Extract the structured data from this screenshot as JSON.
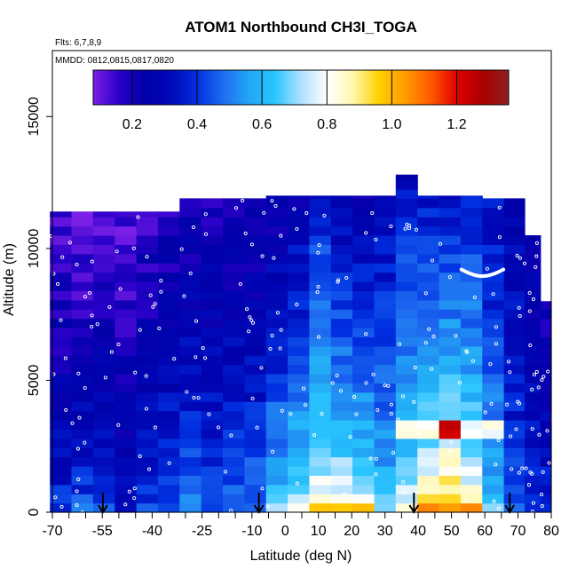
{
  "chart_data": {
    "type": "heatmap",
    "title": "ATOM1 Northbound CH3I_TOGA",
    "flights_label": "Flts: 6,7,8,9",
    "dates_label": "MMDD: 0812,0815,0817,0820",
    "xlabel": "Latitude (deg N)",
    "ylabel": "Altitude (m)",
    "xlim": [
      -70,
      80
    ],
    "ylim": [
      0,
      17500
    ],
    "xticks": [
      -70,
      -55,
      -40,
      -25,
      -10,
      0,
      10,
      20,
      30,
      40,
      50,
      60,
      70,
      80
    ],
    "xtick_labels": [
      "-70",
      "-55",
      "-40",
      "-25",
      "-10",
      "0",
      "10",
      "20",
      "30",
      "40",
      "50",
      "60",
      "70",
      "80"
    ],
    "yticks": [
      0,
      5000,
      10000,
      15000
    ],
    "ytick_labels": [
      "0",
      "5000",
      "10000",
      "15000"
    ],
    "colorbar": {
      "min": 0.08,
      "max": 1.36,
      "ticks": [
        0.2,
        0.4,
        0.6,
        0.8,
        1.0,
        1.2
      ],
      "tick_labels": [
        "0.2",
        "0.4",
        "0.6",
        "0.8",
        "1.0",
        "1.2"
      ],
      "colors": [
        "#7a1fe6",
        "#2a00c8",
        "#0000a8",
        "#0008b8",
        "#0030e0",
        "#1f6cf0",
        "#22a6f4",
        "#2ac6ff",
        "#aee0ff",
        "#ffffff",
        "#fff8b0",
        "#ffd000",
        "#ff9c00",
        "#ff5a00",
        "#e00000",
        "#aa0000",
        "#902020"
      ]
    },
    "airport_markers_latitude": [
      -54.8,
      -7.9,
      38.7,
      67.5
    ],
    "grid": false,
    "legend": "colorbar top",
    "profiles": [
      {
        "lat": -67.5,
        "top": 11400,
        "bottom_value": 0.45,
        "top_value": 0.12
      },
      {
        "lat": -61,
        "top": 11400,
        "bottom_value": 0.5,
        "top_value": 0.1
      },
      {
        "lat": -54.5,
        "top": 11400,
        "bottom_value": 0.5,
        "top_value": 0.12
      },
      {
        "lat": -48,
        "top": 11400,
        "bottom_value": 0.4,
        "top_value": 0.12
      },
      {
        "lat": -41.5,
        "top": 11400,
        "bottom_value": 0.45,
        "top_value": 0.16
      },
      {
        "lat": -35,
        "top": 11400,
        "bottom_value": 0.5,
        "top_value": 0.18
      },
      {
        "lat": -28.5,
        "top": 11900,
        "bottom_value": 0.55,
        "top_value": 0.2
      },
      {
        "lat": -22,
        "top": 11900,
        "bottom_value": 0.5,
        "top_value": 0.2
      },
      {
        "lat": -15.5,
        "top": 11900,
        "bottom_value": 0.55,
        "top_value": 0.2
      },
      {
        "lat": -9,
        "top": 11900,
        "bottom_value": 0.55,
        "top_value": 0.2
      },
      {
        "lat": -2.5,
        "top": 12000,
        "bottom_value": 0.72,
        "top_value": 0.22
      },
      {
        "lat": 4,
        "top": 12000,
        "bottom_value": 0.82,
        "top_value": 0.26
      },
      {
        "lat": 10.5,
        "top": 12000,
        "bottom_value": 0.92,
        "top_value": 0.36
      },
      {
        "lat": 17,
        "top": 12000,
        "bottom_value": 0.95,
        "top_value": 0.26
      },
      {
        "lat": 23.5,
        "top": 12000,
        "bottom_value": 0.85,
        "top_value": 0.26
      },
      {
        "lat": 30,
        "top": 12000,
        "bottom_value": 0.7,
        "top_value": 0.3
      },
      {
        "lat": 36.5,
        "top": 12800,
        "bottom_value": 0.85,
        "top_value": 0.3
      },
      {
        "lat": 43,
        "top": 12000,
        "bottom_value": 1.0,
        "top_value": 0.34
      },
      {
        "lat": 49.5,
        "top": 12000,
        "bottom_value": 1.1,
        "top_value": 0.34
      },
      {
        "lat": 56,
        "top": 12000,
        "bottom_value": 0.95,
        "top_value": 0.36
      },
      {
        "lat": 62.5,
        "top": 11900,
        "bottom_value": 0.7,
        "top_value": 0.32
      },
      {
        "lat": 69,
        "top": 11900,
        "bottom_value": 0.5,
        "top_value": 0.26
      },
      {
        "lat": 75,
        "top": 10500,
        "bottom_value": 0.45,
        "top_value": 0.22
      },
      {
        "lat": 78.5,
        "top": 8000,
        "bottom_value": 0.42,
        "top_value": 0.2
      }
    ],
    "features": [
      {
        "lat_min": 36,
        "lat_max": 65,
        "alt_min": 2900,
        "alt_max": 3500,
        "value": 0.8
      },
      {
        "lat_min": 45,
        "lat_max": 55,
        "alt_min": 2900,
        "alt_max": 3500,
        "value": 1.25
      },
      {
        "lat_min": 42,
        "lat_max": 62,
        "alt_min": 0,
        "alt_max": 500,
        "value": 1.05
      },
      {
        "lat_min": 10,
        "lat_max": 25,
        "alt_min": 0,
        "alt_max": 500,
        "value": 1.0
      },
      {
        "lat_min": 5,
        "lat_max": 15,
        "alt_min": 3500,
        "alt_max": 9500,
        "value": 0.45
      },
      {
        "lat_min": 35,
        "lat_max": 45,
        "alt_min": 4000,
        "alt_max": 10500,
        "value": 0.45
      }
    ]
  }
}
